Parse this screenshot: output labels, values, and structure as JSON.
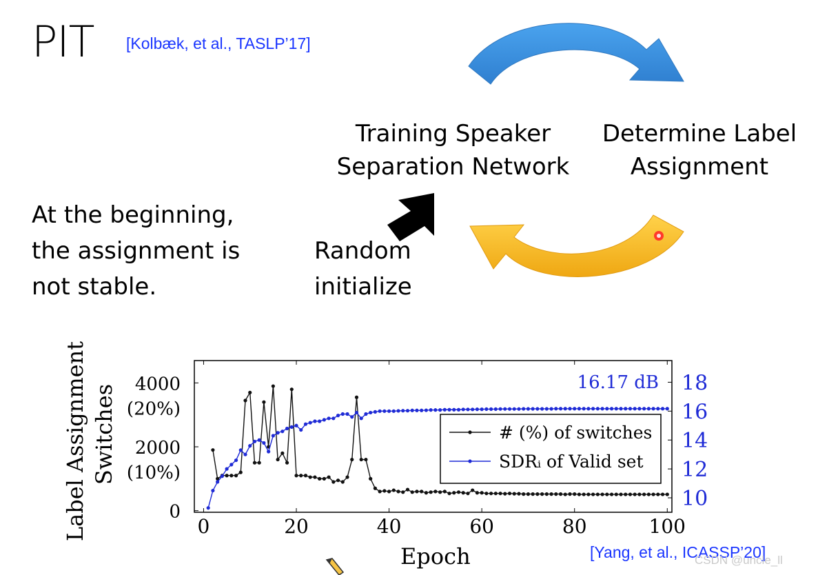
{
  "slide": {
    "title": "PIT",
    "citation_top": "[Kolbæk, et al., TASLP’17]",
    "box_training": [
      "Training Speaker",
      "Separation Network"
    ],
    "box_assignment": [
      "Determine Label",
      "Assignment"
    ],
    "note": [
      "At the beginning,",
      "the assignment is",
      "not stable."
    ],
    "random_init": [
      "Random",
      "initialize"
    ],
    "citation_bottom": "[Yang, et al., ICASSP’20]",
    "watermark": "CSDN @uncle_ll",
    "colors": {
      "citation": "#1a35ff",
      "arrow_top": "#3a8ee0",
      "arrow_bottom": "#f5b820",
      "arrow_black": "#000000"
    },
    "icons": [
      "curved-arrow-top-icon",
      "curved-arrow-bottom-icon",
      "black-arrow-icon",
      "pencil-cursor-icon",
      "laser-pointer-icon"
    ]
  },
  "chart_data": {
    "type": "line",
    "xlabel": "Epoch",
    "ylabel_left": [
      "Label Assignment",
      "Switches"
    ],
    "xticks": [
      0,
      20,
      40,
      60,
      80,
      100
    ],
    "yticks_left": [
      {
        "value": 0,
        "labels": [
          "0"
        ]
      },
      {
        "value": 2000,
        "labels": [
          "2000",
          "(10%)"
        ]
      },
      {
        "value": 4000,
        "labels": [
          "4000",
          "(20%)"
        ]
      }
    ],
    "yticks_right": [
      10,
      12,
      14,
      16,
      18
    ],
    "xlim": [
      -2,
      101
    ],
    "ylim_left": [
      -50,
      4700
    ],
    "ylim_right": [
      9,
      19.5
    ],
    "annotation": "16.17 dB",
    "legend_position": "center-right",
    "colors": {
      "switches": "#111111",
      "sdr": "#1f2bd6",
      "right_axis": "#1f2bd6"
    },
    "series": [
      {
        "name": "# (%) of switches",
        "axis": "left",
        "x": [
          2,
          3,
          4,
          5,
          6,
          7,
          8,
          9,
          10,
          11,
          12,
          13,
          14,
          15,
          16,
          17,
          18,
          19,
          20,
          21,
          22,
          23,
          24,
          25,
          26,
          27,
          28,
          29,
          30,
          31,
          32,
          33,
          34,
          35,
          36,
          37,
          38,
          39,
          40,
          41,
          42,
          43,
          44,
          45,
          46,
          47,
          48,
          49,
          50,
          51,
          52,
          53,
          54,
          55,
          56,
          57,
          58,
          59,
          60,
          61,
          62,
          63,
          64,
          65,
          66,
          67,
          68,
          69,
          70,
          71,
          72,
          73,
          74,
          75,
          76,
          77,
          78,
          79,
          80,
          81,
          82,
          83,
          84,
          85,
          86,
          87,
          88,
          89,
          90,
          91,
          92,
          93,
          94,
          95,
          96,
          97,
          98,
          99,
          100
        ],
        "y": [
          1900,
          1000,
          1100,
          1100,
          1100,
          1100,
          1200,
          3450,
          3700,
          1500,
          1500,
          3400,
          2000,
          3900,
          1600,
          1800,
          1500,
          3800,
          1100,
          1100,
          1100,
          1050,
          1050,
          1000,
          1000,
          1050,
          900,
          950,
          900,
          1050,
          1600,
          3550,
          1600,
          1600,
          1000,
          700,
          600,
          620,
          600,
          640,
          600,
          580,
          660,
          580,
          600,
          600,
          560,
          580,
          600,
          580,
          600,
          540,
          560,
          580,
          560,
          540,
          640,
          560,
          560,
          540,
          540,
          540,
          540,
          530,
          540,
          530,
          530,
          520,
          520,
          520,
          520,
          520,
          520,
          520,
          520,
          520,
          510,
          520,
          520,
          510,
          510,
          510,
          510,
          510,
          510,
          510,
          510,
          510,
          510,
          510,
          510,
          510,
          510,
          510,
          510,
          510,
          510,
          510,
          510
        ]
      },
      {
        "name": "SDRᵢ of Valid set",
        "axis": "right",
        "x": [
          1,
          2,
          3,
          4,
          5,
          6,
          7,
          8,
          9,
          10,
          11,
          12,
          13,
          14,
          15,
          16,
          17,
          18,
          19,
          20,
          21,
          22,
          23,
          24,
          25,
          26,
          27,
          28,
          29,
          30,
          31,
          32,
          33,
          34,
          35,
          36,
          37,
          38,
          39,
          40,
          41,
          42,
          43,
          44,
          45,
          46,
          47,
          48,
          49,
          50,
          51,
          52,
          53,
          54,
          55,
          56,
          57,
          58,
          59,
          60,
          61,
          62,
          63,
          64,
          65,
          66,
          67,
          68,
          69,
          70,
          71,
          72,
          73,
          74,
          75,
          76,
          77,
          78,
          79,
          80,
          81,
          82,
          83,
          84,
          85,
          86,
          87,
          88,
          89,
          90,
          91,
          92,
          93,
          94,
          95,
          96,
          97,
          98,
          99,
          100
        ],
        "y": [
          9.3,
          10.5,
          11.1,
          11.5,
          12.0,
          12.3,
          12.6,
          13.3,
          13.0,
          13.6,
          13.9,
          14.0,
          13.8,
          13.2,
          14.3,
          14.5,
          14.6,
          14.8,
          14.9,
          15.0,
          14.7,
          15.1,
          15.2,
          15.3,
          15.3,
          15.4,
          15.5,
          15.5,
          15.7,
          15.8,
          15.8,
          15.6,
          15.9,
          15.5,
          15.8,
          15.9,
          15.95,
          16.0,
          16.0,
          16.0,
          16.0,
          16.02,
          16.03,
          16.03,
          16.05,
          16.05,
          16.05,
          16.06,
          16.08,
          16.08,
          16.08,
          16.1,
          16.1,
          16.1,
          16.1,
          16.12,
          16.12,
          16.12,
          16.13,
          16.13,
          16.14,
          16.14,
          16.14,
          16.15,
          16.15,
          16.15,
          16.15,
          16.15,
          16.16,
          16.16,
          16.16,
          16.16,
          16.16,
          16.16,
          16.16,
          16.17,
          16.17,
          16.17,
          16.17,
          16.17,
          16.17,
          16.17,
          16.17,
          16.17,
          16.17,
          16.17,
          16.17,
          16.17,
          16.17,
          16.17,
          16.17,
          16.17,
          16.17,
          16.17,
          16.17,
          16.17,
          16.17,
          16.17,
          16.17,
          16.17
        ]
      }
    ]
  }
}
